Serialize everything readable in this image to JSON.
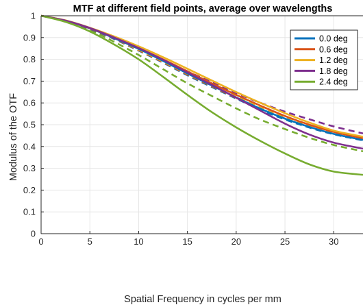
{
  "chart_data": {
    "type": "line",
    "title": "MTF at different field points, average over wavelengths",
    "xlabel": "Spatial Frequency in cycles per mm",
    "ylabel": "Modulus of the OTF",
    "xlim": [
      0,
      33
    ],
    "ylim": [
      0,
      1
    ],
    "xticks": [
      "0",
      "5",
      "10",
      "15",
      "20",
      "25",
      "30"
    ],
    "yticks": [
      "0",
      "0.1",
      "0.2",
      "0.3",
      "0.4",
      "0.5",
      "0.6",
      "0.7",
      "0.8",
      "0.9",
      "1"
    ],
    "grid": true,
    "legend_position": "top-right",
    "x": [
      0,
      2.5,
      5,
      7.5,
      10,
      12.5,
      15,
      17.5,
      20,
      22.5,
      25,
      27.5,
      30,
      33
    ],
    "series": [
      {
        "name": "0.0 deg",
        "style": "solid",
        "color": "#0072BD",
        "values": [
          1.0,
          0.977,
          0.942,
          0.897,
          0.848,
          0.793,
          0.735,
          0.68,
          0.625,
          0.573,
          0.528,
          0.49,
          0.458,
          0.43
        ]
      },
      {
        "name": "",
        "style": "dashed",
        "color": "#0072BD",
        "values": [
          1.0,
          0.977,
          0.94,
          0.893,
          0.84,
          0.785,
          0.727,
          0.673,
          0.62,
          0.568,
          0.524,
          0.487,
          0.456,
          0.428
        ]
      },
      {
        "name": "0.6 deg",
        "style": "solid",
        "color": "#D95319",
        "values": [
          1.0,
          0.978,
          0.943,
          0.9,
          0.852,
          0.8,
          0.745,
          0.69,
          0.637,
          0.587,
          0.54,
          0.5,
          0.467,
          0.438
        ]
      },
      {
        "name": "",
        "style": "dashed",
        "color": "#D95319",
        "values": [
          1.0,
          0.977,
          0.94,
          0.894,
          0.842,
          0.787,
          0.73,
          0.676,
          0.623,
          0.573,
          0.528,
          0.49,
          0.458,
          0.43
        ]
      },
      {
        "name": "1.2 deg",
        "style": "solid",
        "color": "#EDB120",
        "values": [
          1.0,
          0.979,
          0.945,
          0.905,
          0.86,
          0.81,
          0.757,
          0.703,
          0.65,
          0.6,
          0.553,
          0.51,
          0.473,
          0.445
        ]
      },
      {
        "name": "",
        "style": "dashed",
        "color": "#EDB120",
        "values": [
          1.0,
          0.977,
          0.941,
          0.895,
          0.845,
          0.79,
          0.734,
          0.68,
          0.628,
          0.578,
          0.532,
          0.494,
          0.462,
          0.434
        ]
      },
      {
        "name": "1.8 deg",
        "style": "solid",
        "color": "#7E2F8E",
        "values": [
          1.0,
          0.978,
          0.944,
          0.9,
          0.852,
          0.798,
          0.74,
          0.683,
          0.624,
          0.564,
          0.505,
          0.455,
          0.418,
          0.39
        ]
      },
      {
        "name": "",
        "style": "dashed",
        "color": "#7E2F8E",
        "values": [
          1.0,
          0.977,
          0.94,
          0.895,
          0.848,
          0.797,
          0.745,
          0.695,
          0.645,
          0.6,
          0.56,
          0.525,
          0.492,
          0.46
        ]
      },
      {
        "name": "2.4 deg",
        "style": "solid",
        "color": "#77AC30",
        "values": [
          1.0,
          0.972,
          0.928,
          0.868,
          0.8,
          0.72,
          0.637,
          0.558,
          0.488,
          0.425,
          0.368,
          0.318,
          0.285,
          0.27
        ]
      },
      {
        "name": "",
        "style": "dashed",
        "color": "#77AC30",
        "values": [
          1.0,
          0.975,
          0.935,
          0.88,
          0.82,
          0.755,
          0.69,
          0.632,
          0.575,
          0.523,
          0.48,
          0.44,
          0.407,
          0.378
        ]
      }
    ]
  }
}
